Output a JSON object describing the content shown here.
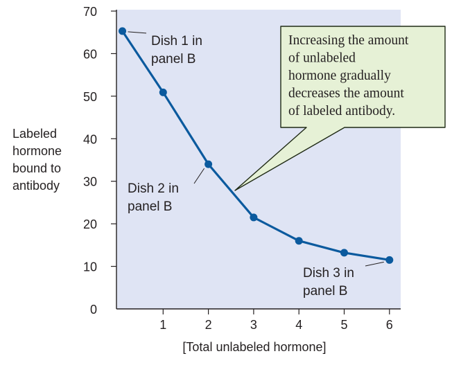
{
  "chart_data": {
    "type": "line",
    "ylabel": [
      "Labeled",
      "hormone",
      "bound to",
      "antibody"
    ],
    "xlabel": "[Total unlabeled hormone]",
    "ylim": [
      0,
      70
    ],
    "xlim": [
      0,
      6
    ],
    "y_ticks": [
      0,
      10,
      20,
      30,
      40,
      50,
      60,
      70
    ],
    "x_ticks": [
      1,
      2,
      3,
      4,
      5,
      6
    ],
    "grid": false,
    "series": [
      {
        "x": [
          0.1,
          1,
          2,
          3,
          4,
          5,
          6
        ],
        "y": [
          65.3,
          50.9,
          34,
          21.5,
          16,
          13.2,
          11.5
        ],
        "color": "#0b5a9e"
      }
    ],
    "annotations": {
      "dish1": [
        "Dish 1 in",
        "panel B"
      ],
      "dish2": [
        "Dish 2 in",
        "panel B"
      ],
      "dish3": [
        "Dish 3 in",
        "panel B"
      ],
      "callout": [
        "Increasing the amount",
        "of  unlabeled",
        "hormone gradually",
        "decreases the amount",
        "of labeled antibody."
      ]
    },
    "colors": {
      "plot_background": "#dfe4f4",
      "line": "#0b5a9e",
      "callout_fill": "#e6f1d6",
      "callout_border": "#1f2a15"
    }
  }
}
